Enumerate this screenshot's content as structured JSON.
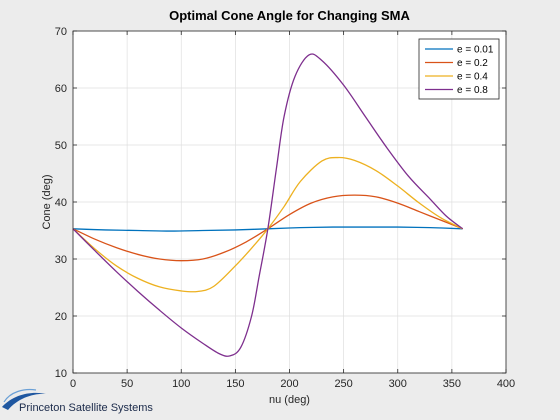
{
  "chart_data": {
    "type": "line",
    "title": "Optimal Cone Angle for Changing SMA",
    "xlabel": "nu (deg)",
    "ylabel": "Cone (deg)",
    "xlim": [
      0,
      400
    ],
    "ylim": [
      10,
      70
    ],
    "xticks": [
      0,
      50,
      100,
      150,
      200,
      250,
      300,
      350,
      400
    ],
    "yticks": [
      10,
      20,
      30,
      40,
      50,
      60,
      70
    ],
    "grid": true,
    "legend_position": "top-right",
    "series": [
      {
        "name": "e = 0.01",
        "color": "#0072BD",
        "x": [
          0,
          30,
          60,
          90,
          120,
          150,
          180,
          210,
          240,
          270,
          300,
          330,
          360
        ],
        "y": [
          35.3,
          35.1,
          35.0,
          34.9,
          35.0,
          35.1,
          35.3,
          35.5,
          35.6,
          35.6,
          35.6,
          35.5,
          35.3
        ]
      },
      {
        "name": "e = 0.2",
        "color": "#D95319",
        "x": [
          0,
          20,
          40,
          60,
          80,
          100,
          120,
          140,
          160,
          180,
          200,
          220,
          240,
          260,
          280,
          300,
          320,
          340,
          360
        ],
        "y": [
          35.3,
          33.5,
          32.0,
          30.8,
          30.0,
          29.7,
          30.0,
          31.2,
          33.0,
          35.3,
          37.8,
          39.8,
          40.9,
          41.2,
          40.9,
          39.8,
          38.3,
          36.8,
          35.3
        ]
      },
      {
        "name": "e = 0.4",
        "color": "#EDB120",
        "x": [
          0,
          20,
          40,
          60,
          80,
          100,
          115,
          130,
          150,
          165,
          180,
          195,
          210,
          230,
          245,
          260,
          280,
          300,
          320,
          340,
          360
        ],
        "y": [
          35.3,
          31.8,
          28.8,
          26.6,
          25.1,
          24.4,
          24.3,
          25.2,
          28.8,
          31.9,
          35.3,
          39.2,
          43.6,
          47.2,
          47.8,
          47.3,
          45.5,
          42.8,
          39.8,
          37.2,
          35.3
        ]
      },
      {
        "name": "e = 0.8",
        "color": "#7E2F8E",
        "x": [
          0,
          20,
          40,
          60,
          80,
          100,
          120,
          135,
          145,
          155,
          165,
          172,
          180,
          188,
          195,
          205,
          218,
          230,
          250,
          270,
          290,
          310,
          330,
          345,
          360
        ],
        "y": [
          35.3,
          31.5,
          27.8,
          24.3,
          21.0,
          17.9,
          15.2,
          13.4,
          13.0,
          14.5,
          20.0,
          27.0,
          35.3,
          46.0,
          55.0,
          62.0,
          65.8,
          64.8,
          60.5,
          55.0,
          49.5,
          44.5,
          40.5,
          37.5,
          35.3
        ]
      }
    ]
  },
  "logo": {
    "text": "Princeton Satellite Systems"
  }
}
